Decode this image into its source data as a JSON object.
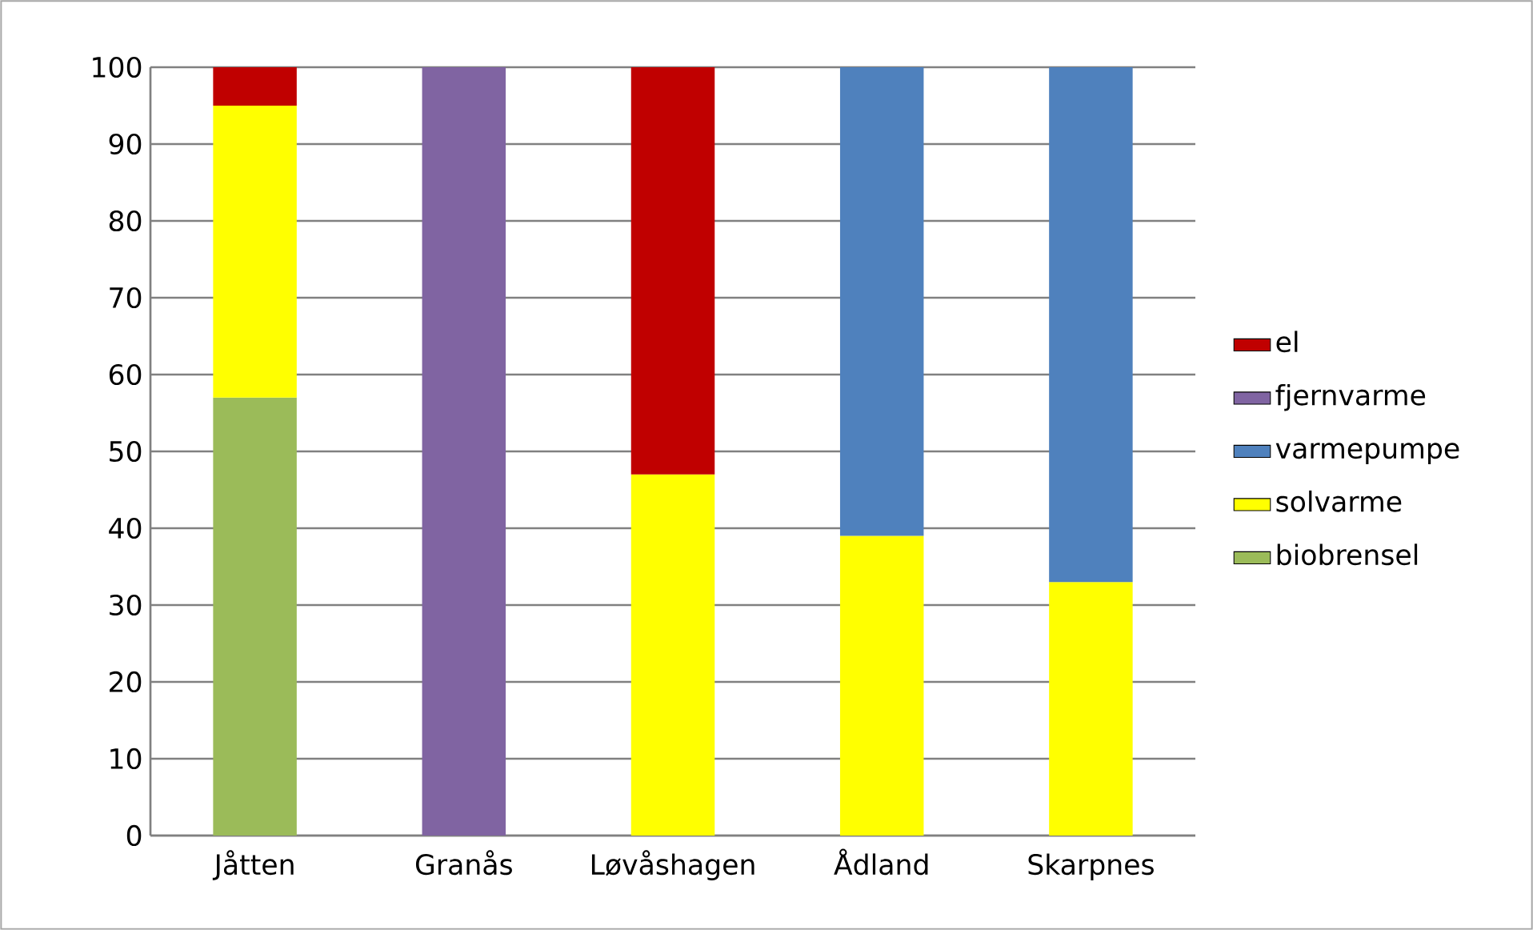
{
  "chart_data": {
    "type": "bar",
    "stacked": true,
    "categories": [
      "Jåtten",
      "Granås",
      "Løvåshagen",
      "Ådland",
      "Skarpnes"
    ],
    "series": [
      {
        "name": "biobrensel",
        "color": "#9bbb59",
        "values": [
          57,
          null,
          null,
          null,
          null
        ]
      },
      {
        "name": "solvarme",
        "color": "#ffff00",
        "values": [
          38,
          null,
          47,
          39,
          33
        ]
      },
      {
        "name": "varmepumpe",
        "color": "#4f81bd",
        "values": [
          null,
          null,
          null,
          61,
          67
        ]
      },
      {
        "name": "fjernvarme",
        "color": "#8064a2",
        "values": [
          null,
          100,
          null,
          null,
          null
        ]
      },
      {
        "name": "el",
        "color": "#c00000",
        "values": [
          5,
          null,
          53,
          null,
          null
        ]
      }
    ],
    "ylim": [
      0,
      100
    ],
    "yticks": [
      0,
      10,
      20,
      30,
      40,
      50,
      60,
      70,
      80,
      90,
      100
    ],
    "grid": "y",
    "legend": "right"
  }
}
